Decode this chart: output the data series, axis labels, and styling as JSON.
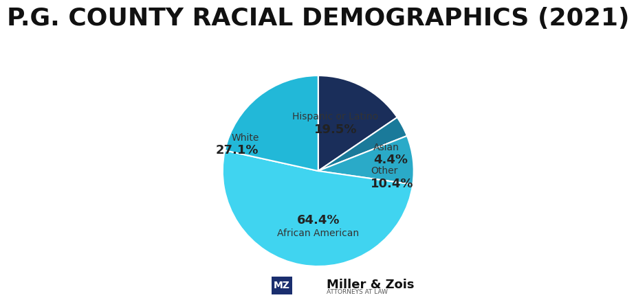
{
  "title": "P.G. COUNTY RACIAL DEMOGRAPHICS (2021)",
  "slices": [
    {
      "label": "Hispanic or Latino",
      "value": 19.5,
      "color": "#1a2e5a"
    },
    {
      "label": "Asian",
      "value": 4.4,
      "color": "#1a7a9a"
    },
    {
      "label": "Other",
      "value": 10.4,
      "color": "#2aaac8"
    },
    {
      "label": "African American",
      "value": 64.4,
      "color": "#40d4f0"
    },
    {
      "label": "White",
      "value": 27.1,
      "color": "#22b8d8"
    }
  ],
  "startangle": 90,
  "background_color": "#ffffff",
  "title_fontsize": 26,
  "label_fontsize": 10,
  "pct_fontsize": 13,
  "logo_box_color": "#1a2e6e",
  "logo_text": "MZ",
  "brand_name": "Miller & Zois",
  "brand_sub": "ATTORNEYS AT LAW"
}
